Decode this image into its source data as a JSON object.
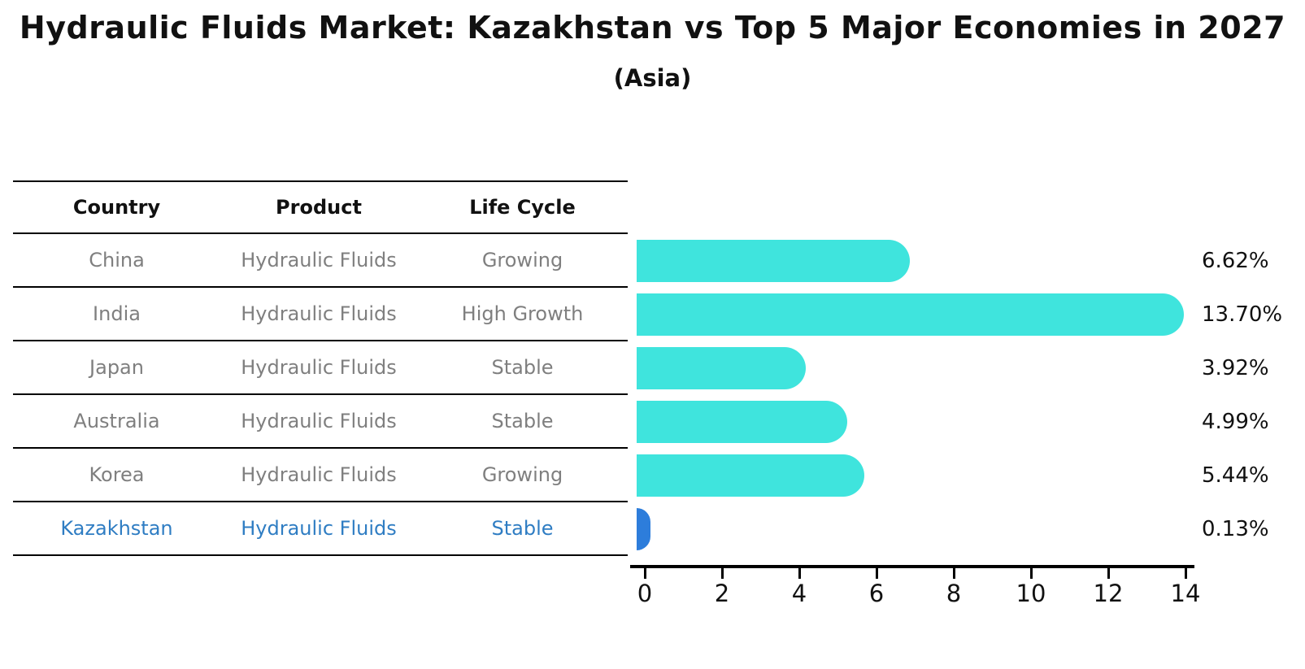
{
  "title": "Hydraulic Fluids Market: Kazakhstan vs Top 5 Major Economies in 2027",
  "subtitle": "(Asia)",
  "table": {
    "columns": [
      "Country",
      "Product",
      "Life Cycle"
    ],
    "rows": [
      {
        "country": "China",
        "product": "Hydraulic Fluids",
        "life_cycle": "Growing"
      },
      {
        "country": "India",
        "product": "Hydraulic Fluids",
        "life_cycle": "High Growth"
      },
      {
        "country": "Japan",
        "product": "Hydraulic Fluids",
        "life_cycle": "Stable"
      },
      {
        "country": "Australia",
        "product": "Hydraulic Fluids",
        "life_cycle": "Stable"
      },
      {
        "country": "Korea",
        "product": "Hydraulic Fluids",
        "life_cycle": "Growing"
      },
      {
        "country": "Kazakhstan",
        "product": "Hydraulic Fluids",
        "life_cycle": "Stable"
      }
    ]
  },
  "chart_data": {
    "type": "bar",
    "orientation": "horizontal",
    "title": "Hydraulic Fluids Market: Kazakhstan vs Top 5 Major Economies in 2027",
    "subtitle": "(Asia)",
    "categories": [
      "China",
      "India",
      "Japan",
      "Australia",
      "Korea",
      "Kazakhstan"
    ],
    "values": [
      6.62,
      13.7,
      3.92,
      4.99,
      5.44,
      0.13
    ],
    "value_labels": [
      "6.62%",
      "13.70%",
      "3.92%",
      "4.99%",
      "5.44%",
      "0.13%"
    ],
    "x_ticks": [
      0,
      2,
      4,
      6,
      8,
      10,
      12,
      14
    ],
    "xlim": [
      0,
      14.5
    ],
    "unit": "%",
    "grid": false,
    "legend": false,
    "bar_color": "#3fe4dd",
    "highlight_color": "#2d7ddb",
    "highlight_index": 5,
    "highlight_text_color": "#2f7dc3"
  },
  "colors": {
    "background": "#ffffff",
    "text_primary": "#111111",
    "text_secondary": "#7f7f7f",
    "line": "#000000"
  }
}
